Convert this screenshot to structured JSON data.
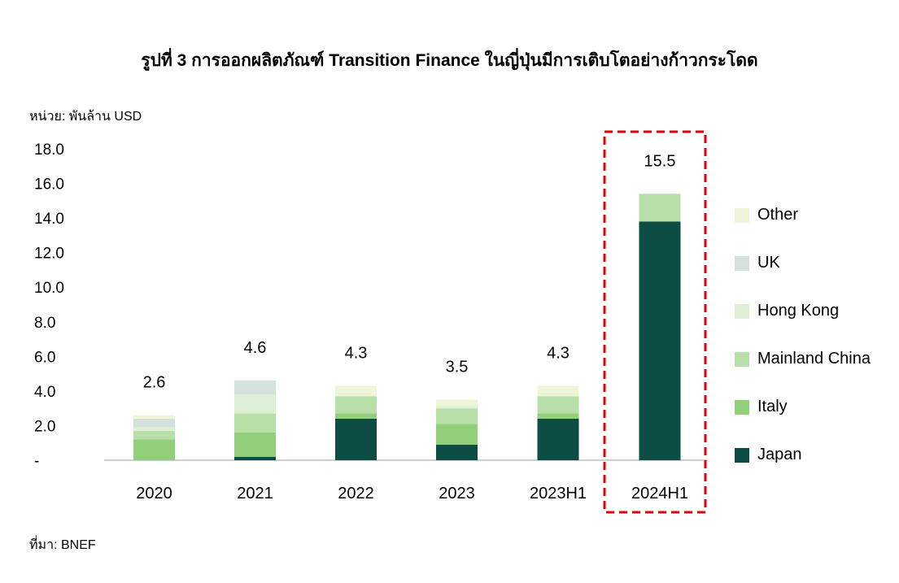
{
  "title": "รูปที่ 3 การออกผลิตภัณฑ์ Transition Finance ในญี่ปุ่นมีการเติบโตอย่างก้าวกระโดด",
  "unit_label": "หน่วย: พันล้าน USD",
  "source_label": "ที่มา: BNEF",
  "chart_data": {
    "type": "bar",
    "stacked": true,
    "categories": [
      "2020",
      "2021",
      "2022",
      "2023",
      "2023H1",
      "2024H1"
    ],
    "series": [
      {
        "name": "Japan",
        "color": "#0d4d44",
        "values": [
          0,
          0.2,
          2.4,
          0.9,
          2.4,
          13.8
        ]
      },
      {
        "name": "Italy",
        "color": "#91cf7a",
        "values": [
          1.2,
          1.4,
          0.3,
          1.2,
          0.3,
          0
        ]
      },
      {
        "name": "Mainland China",
        "color": "#b8dfa8",
        "values": [
          0.5,
          1.1,
          1.0,
          0.9,
          1.0,
          1.6
        ]
      },
      {
        "name": "Hong Kong",
        "color": "#ddf0d6",
        "values": [
          0.2,
          1.1,
          0,
          0.1,
          0,
          0
        ]
      },
      {
        "name": "UK",
        "color": "#d5e1dc",
        "values": [
          0.5,
          0.8,
          0,
          0,
          0,
          0
        ]
      },
      {
        "name": "Other",
        "color": "#eef5d9",
        "values": [
          0.2,
          0,
          0.6,
          0.4,
          0.6,
          0
        ]
      }
    ],
    "totals": [
      "2.6",
      "4.6",
      "4.3",
      "3.5",
      "4.3",
      "15.5"
    ],
    "y_ticks": [
      "-",
      "2.0",
      "4.0",
      "6.0",
      "8.0",
      "10.0",
      "12.0",
      "14.0",
      "16.0",
      "18.0"
    ],
    "ylim": [
      0,
      18
    ],
    "grid": false,
    "legend_position": "right",
    "highlight_category": "2024H1",
    "highlight_color": "#e60000"
  }
}
